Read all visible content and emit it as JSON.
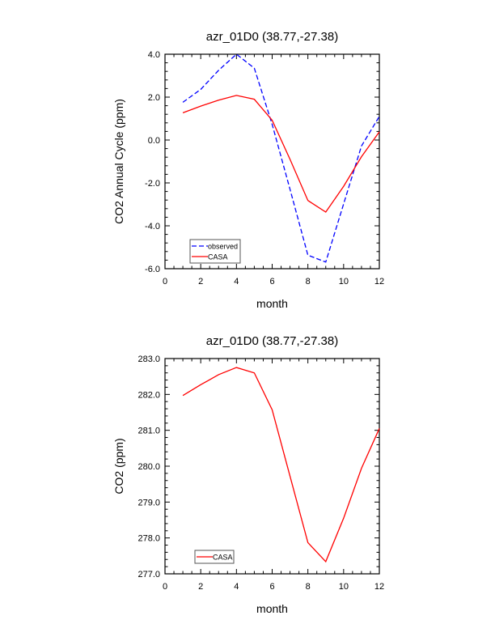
{
  "chart_data": [
    {
      "type": "line",
      "title": "azr_01D0 (38.77,-27.38)",
      "xlabel": "month",
      "ylabel": "CO2 Annual Cycle (ppm)",
      "xlim": [
        0,
        12
      ],
      "ylim": [
        -6,
        4
      ],
      "xticks": [
        0,
        2,
        4,
        6,
        8,
        10,
        12
      ],
      "xtick_labels": [
        "0",
        "2",
        "4",
        "6",
        "8",
        "10",
        "12"
      ],
      "yticks": [
        -6,
        -4,
        -2,
        0,
        2,
        4
      ],
      "ytick_labels": [
        "-6.0",
        "-4.0",
        "-2.0",
        "0.0",
        "2.0",
        "4.0"
      ],
      "x": [
        1,
        2,
        3,
        4,
        5,
        6,
        7,
        8,
        9,
        10,
        11,
        12
      ],
      "legend_position": "bottom-left",
      "series": [
        {
          "name": "observed",
          "color": "#0000ff",
          "dash": true,
          "values": [
            1.76,
            2.36,
            3.25,
            4.0,
            3.35,
            0.73,
            -2.3,
            -5.37,
            -5.69,
            -2.98,
            -0.28,
            1.1
          ]
        },
        {
          "name": "CASA",
          "color": "#ff0000",
          "dash": false,
          "values": [
            1.27,
            1.58,
            1.86,
            2.08,
            1.9,
            0.92,
            -0.9,
            -2.82,
            -3.36,
            -2.16,
            -0.78,
            0.38
          ]
        }
      ]
    },
    {
      "type": "line",
      "title": "azr_01D0 (38.77,-27.38)",
      "xlabel": "month",
      "ylabel": "CO2 (ppm)",
      "xlim": [
        0,
        12
      ],
      "ylim": [
        277,
        283
      ],
      "xticks": [
        0,
        2,
        4,
        6,
        8,
        10,
        12
      ],
      "xtick_labels": [
        "0",
        "2",
        "4",
        "6",
        "8",
        "10",
        "12"
      ],
      "yticks": [
        277,
        278,
        279,
        280,
        281,
        282,
        283
      ],
      "ytick_labels": [
        "277.0",
        "278.0",
        "279.0",
        "280.0",
        "281.0",
        "282.0",
        "283.0"
      ],
      "x": [
        1,
        2,
        3,
        4,
        5,
        6,
        7,
        8,
        9,
        10,
        11,
        12
      ],
      "legend_position": "bottom-left",
      "series": [
        {
          "name": "CASA",
          "color": "#ff0000",
          "dash": false,
          "values": [
            281.97,
            282.27,
            282.55,
            282.75,
            282.6,
            281.57,
            279.72,
            277.87,
            277.34,
            278.55,
            279.94,
            281.05
          ]
        }
      ]
    }
  ]
}
